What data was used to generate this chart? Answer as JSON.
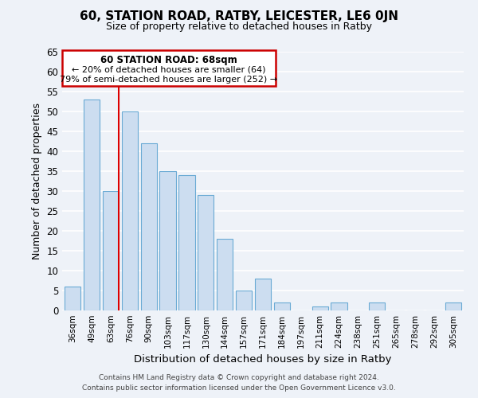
{
  "title": "60, STATION ROAD, RATBY, LEICESTER, LE6 0JN",
  "subtitle": "Size of property relative to detached houses in Ratby",
  "xlabel": "Distribution of detached houses by size in Ratby",
  "ylabel": "Number of detached properties",
  "categories": [
    "36sqm",
    "49sqm",
    "63sqm",
    "76sqm",
    "90sqm",
    "103sqm",
    "117sqm",
    "130sqm",
    "144sqm",
    "157sqm",
    "171sqm",
    "184sqm",
    "197sqm",
    "211sqm",
    "224sqm",
    "238sqm",
    "251sqm",
    "265sqm",
    "278sqm",
    "292sqm",
    "305sqm"
  ],
  "values": [
    6,
    53,
    30,
    50,
    42,
    35,
    34,
    29,
    18,
    5,
    8,
    2,
    0,
    1,
    2,
    0,
    2,
    0,
    0,
    0,
    2
  ],
  "bar_color": "#ccddf0",
  "bar_edge_color": "#6aaad4",
  "vline_color": "#dd0000",
  "ylim": [
    0,
    65
  ],
  "yticks": [
    0,
    5,
    10,
    15,
    20,
    25,
    30,
    35,
    40,
    45,
    50,
    55,
    60,
    65
  ],
  "annotation_title": "60 STATION ROAD: 68sqm",
  "annotation_line1": "← 20% of detached houses are smaller (64)",
  "annotation_line2": "79% of semi-detached houses are larger (252) →",
  "annotation_box_color": "#ffffff",
  "annotation_box_edge": "#cc0000",
  "footer1": "Contains HM Land Registry data © Crown copyright and database right 2024.",
  "footer2": "Contains public sector information licensed under the Open Government Licence v3.0.",
  "background_color": "#eef2f8",
  "grid_color": "#ffffff"
}
